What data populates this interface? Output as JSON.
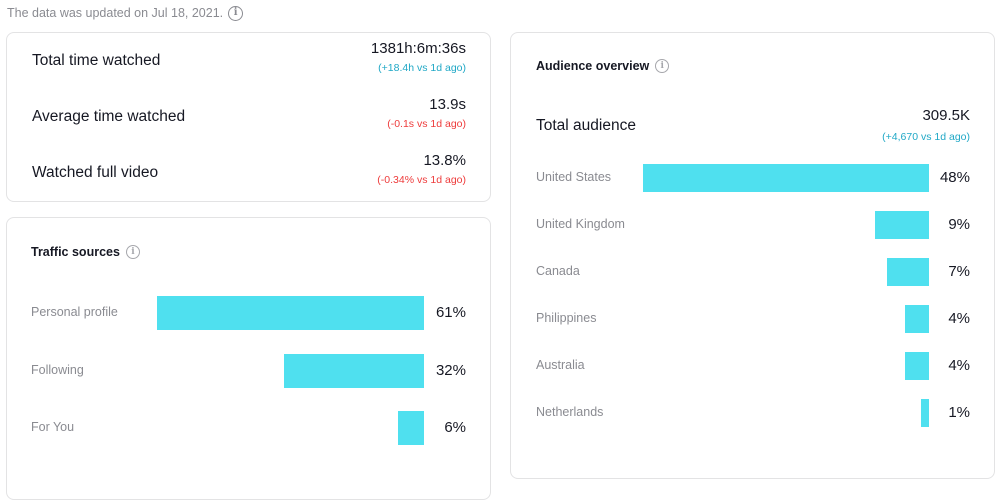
{
  "header": {
    "updated_text": "The data was updated on Jul 18, 2021.",
    "info_glyph": "i"
  },
  "metrics": [
    {
      "label": "Total time watched",
      "value": "1381h:6m:36s",
      "delta": "(+18.4h vs 1d ago)",
      "trend": "up"
    },
    {
      "label": "Average time watched",
      "value": "13.9s",
      "delta": "(-0.1s vs 1d ago)",
      "trend": "down"
    },
    {
      "label": "Watched full video",
      "value": "13.8%",
      "delta": "(-0.34% vs 1d ago)",
      "trend": "down"
    }
  ],
  "traffic": {
    "title": "Traffic sources",
    "items": [
      {
        "label": "Personal profile",
        "pct": "61%",
        "value": 61
      },
      {
        "label": "Following",
        "pct": "32%",
        "value": 32
      },
      {
        "label": "For You",
        "pct": "6%",
        "value": 6
      }
    ]
  },
  "audience": {
    "title": "Audience overview",
    "total_label": "Total audience",
    "total_value": "309.5K",
    "total_delta": "(+4,670 vs 1d ago)",
    "countries": [
      {
        "label": "United States",
        "pct": "48%",
        "value": 48
      },
      {
        "label": "United Kingdom",
        "pct": "9%",
        "value": 9
      },
      {
        "label": "Canada",
        "pct": "7%",
        "value": 7
      },
      {
        "label": "Philippines",
        "pct": "4%",
        "value": 4
      },
      {
        "label": "Australia",
        "pct": "4%",
        "value": 4
      },
      {
        "label": "Netherlands",
        "pct": "1%",
        "value": 1
      }
    ]
  },
  "colors": {
    "bar": "#4fe0ef",
    "up": "#20a8c6",
    "down": "#ee3b3b",
    "muted": "#8a8b91"
  }
}
